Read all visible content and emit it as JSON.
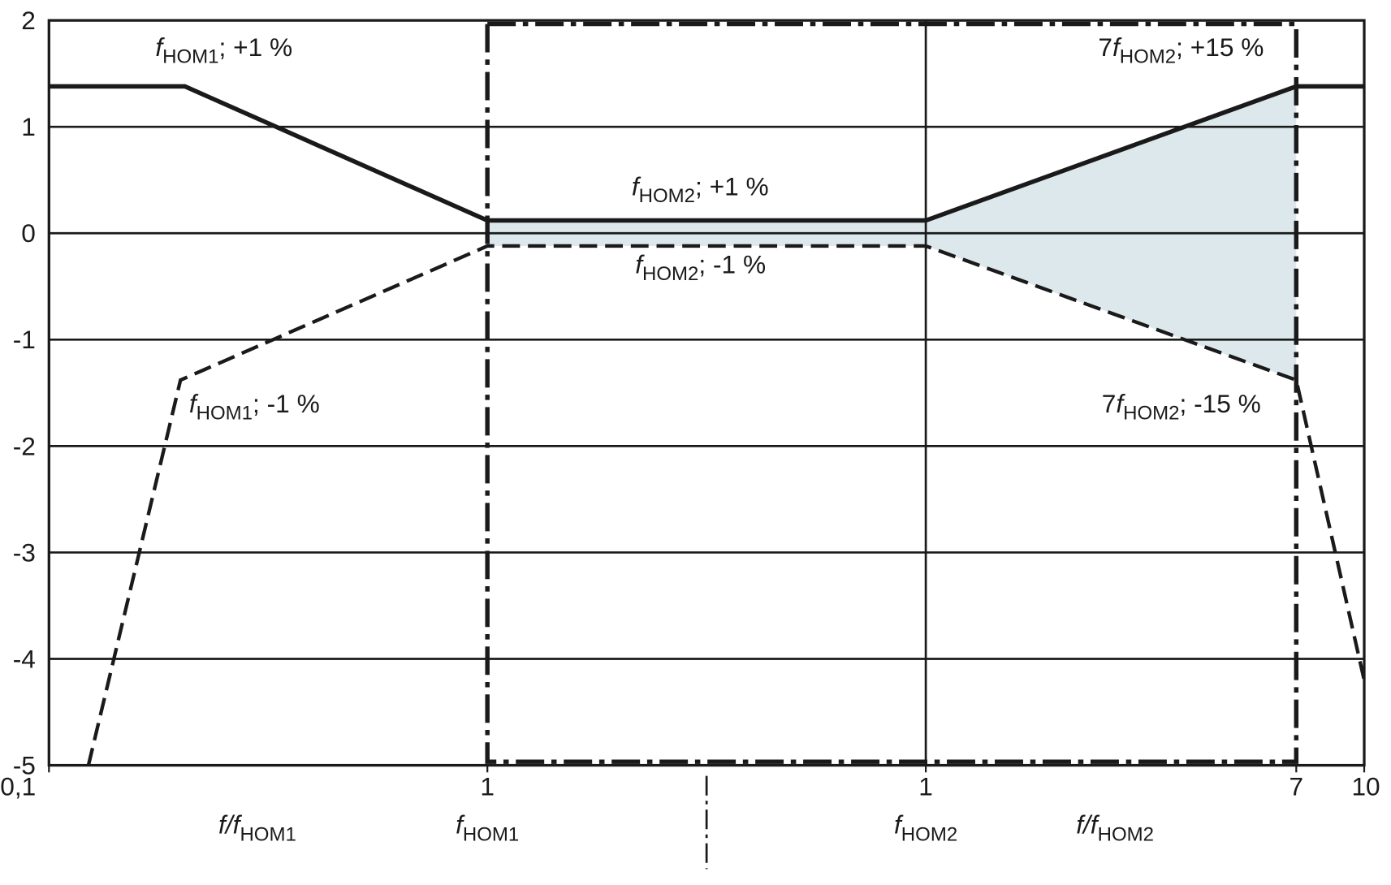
{
  "chart_data": {
    "type": "line",
    "xlim": [
      -1,
      2
    ],
    "ylim": [
      -5,
      2
    ],
    "yticks": [
      2,
      1,
      0,
      -1,
      -2,
      -3,
      -4,
      -5
    ],
    "xticks": [
      {
        "value": -1,
        "label": "0,1"
      },
      {
        "value": 0,
        "label": "1"
      },
      {
        "value": 1,
        "label": "1"
      },
      {
        "value": 1.845,
        "label": "7"
      },
      {
        "value": 2,
        "label": "10"
      }
    ],
    "grid": true,
    "fill_color": "#dde8ec",
    "series": [
      {
        "color": "#1a1a1a",
        "style": "solid",
        "x": [
          -1,
          -0.69,
          0,
          1,
          1.845,
          2
        ],
        "values": [
          1.38,
          1.38,
          0.12,
          0.12,
          1.38,
          1.38
        ]
      },
      {
        "color": "#1a1a1a",
        "style": "dashed",
        "x": [
          -0.91,
          -0.7,
          0,
          1,
          1.845,
          2
        ],
        "values": [
          -5,
          -1.38,
          -0.12,
          -0.12,
          -1.38,
          -4.2
        ]
      }
    ],
    "annotations": [
      {
        "italic": "f",
        "sub": "НОМ1",
        "text": "; +1 %"
      },
      {
        "italic": "f",
        "sub": "НОМ2",
        "text": "; +1 %"
      },
      {
        "italic": "f",
        "sub": "НОМ2",
        "text": "; -1 %"
      },
      {
        "italic": "f",
        "sub": "НОМ1",
        "text": "; -1 %"
      },
      {
        "prefix": "7",
        "italic": "f",
        "sub": "НОМ2",
        "text": "; +15 %"
      },
      {
        "prefix": "7",
        "italic": "f",
        "sub": "НОМ2",
        "text": "; -15 %"
      }
    ],
    "x_labels": [
      {
        "italic": "f/f",
        "sub": "НОМ1"
      },
      {
        "italic": "f",
        "sub": "НОМ1"
      },
      {
        "italic": "f",
        "sub": "НОМ2"
      },
      {
        "italic": "f/f",
        "sub": "НОМ2"
      }
    ]
  }
}
